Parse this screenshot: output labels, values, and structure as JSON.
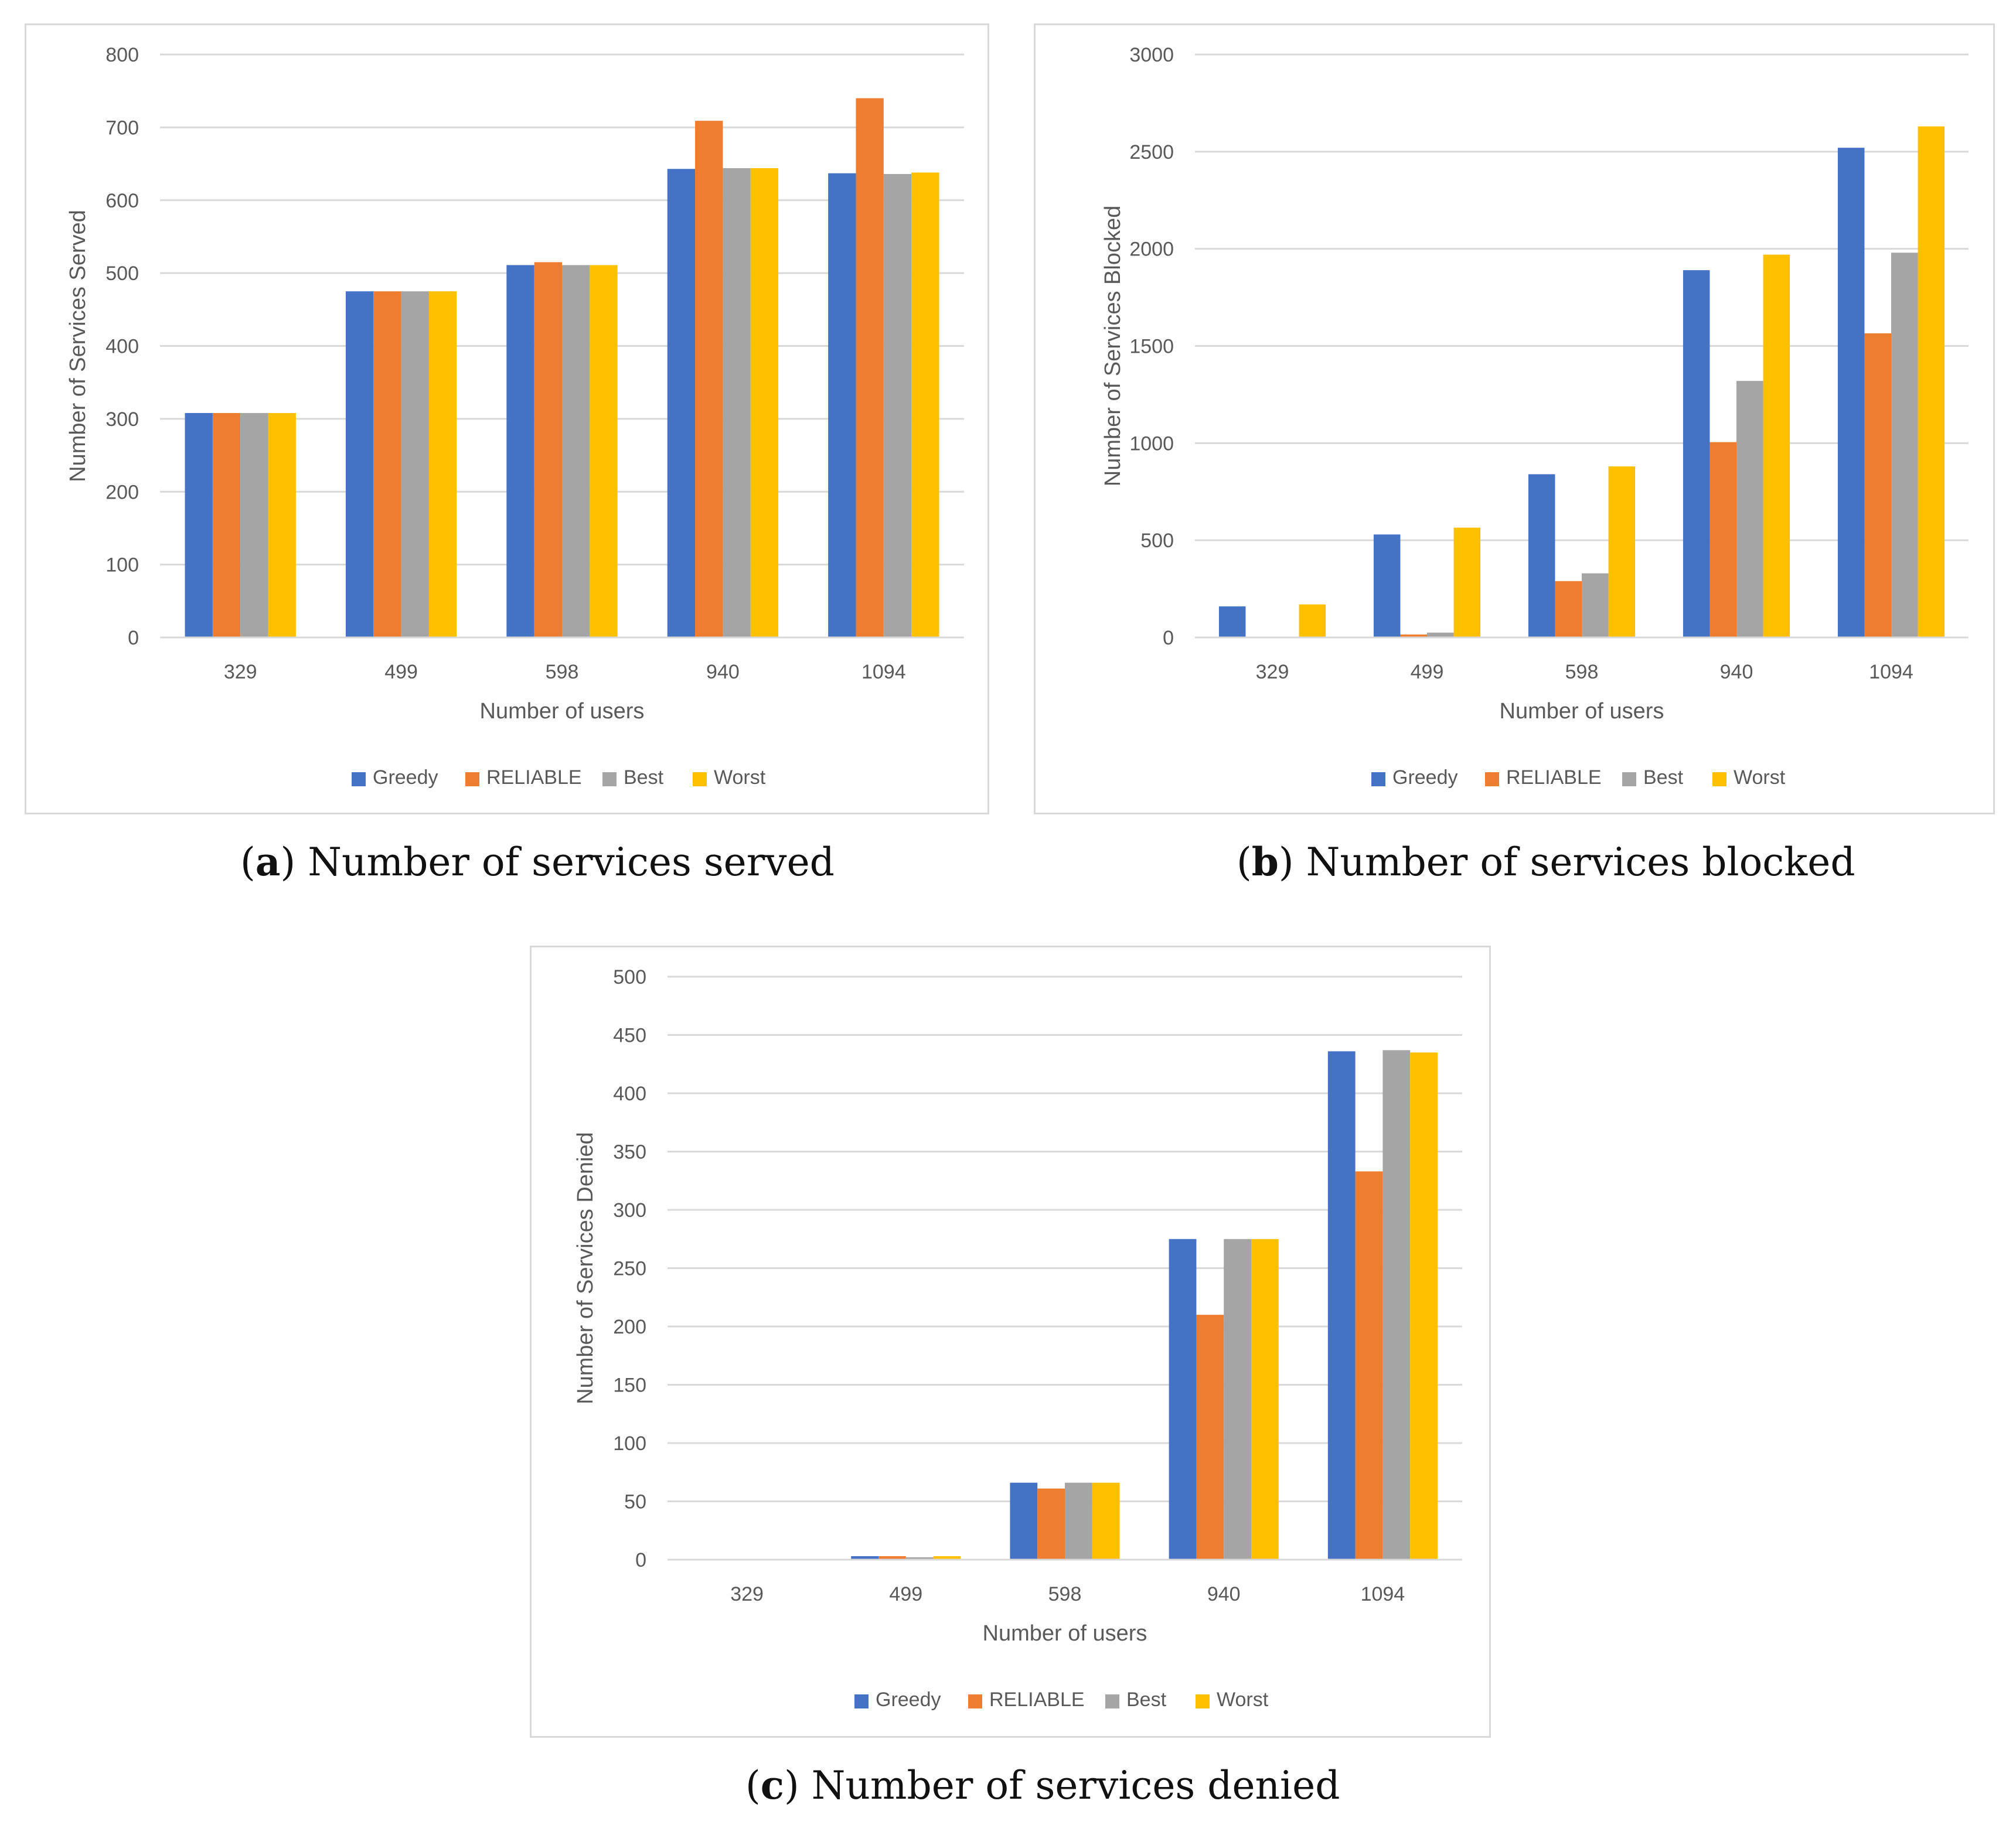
{
  "chart_data": [
    {
      "id": "a",
      "type": "bar",
      "categories": [
        "329",
        "499",
        "598",
        "940",
        "1094"
      ],
      "series": [
        {
          "name": "Greedy",
          "values": [
            308,
            475,
            511,
            643,
            637
          ]
        },
        {
          "name": "RELIABLE",
          "values": [
            308,
            475,
            515,
            709,
            740
          ]
        },
        {
          "name": "Best",
          "values": [
            308,
            475,
            511,
            644,
            636
          ]
        },
        {
          "name": "Worst",
          "values": [
            308,
            475,
            511,
            644,
            638
          ]
        }
      ],
      "ylim": [
        0,
        800
      ],
      "ystep": 100,
      "yticks": [
        "0",
        "100",
        "200",
        "300",
        "400",
        "500",
        "600",
        "700",
        "800"
      ],
      "xlabel": "Number of users",
      "ylabel": "Number of Services Served",
      "legend": "bottom",
      "grid": true,
      "caption_label": "a",
      "caption_text": "Number of services served"
    },
    {
      "id": "b",
      "type": "bar",
      "categories": [
        "329",
        "499",
        "598",
        "940",
        "1094"
      ],
      "series": [
        {
          "name": "Greedy",
          "values": [
            160,
            530,
            840,
            1890,
            2520
          ]
        },
        {
          "name": "RELIABLE",
          "values": [
            0,
            15,
            290,
            1005,
            1565
          ]
        },
        {
          "name": "Best",
          "values": [
            0,
            25,
            330,
            1320,
            1980
          ]
        },
        {
          "name": "Worst",
          "values": [
            170,
            565,
            880,
            1970,
            2630
          ]
        }
      ],
      "ylim": [
        0,
        3000
      ],
      "ystep": 500,
      "yticks": [
        "0",
        "500",
        "1000",
        "1500",
        "2000",
        "2500",
        "3000"
      ],
      "xlabel": "Number of users",
      "ylabel": "Number of Services Blocked",
      "legend": "bottom",
      "grid": true,
      "caption_label": "b",
      "caption_text": "Number of services blocked"
    },
    {
      "id": "c",
      "type": "bar",
      "categories": [
        "329",
        "499",
        "598",
        "940",
        "1094"
      ],
      "series": [
        {
          "name": "Greedy",
          "values": [
            0,
            3,
            66,
            275,
            436
          ]
        },
        {
          "name": "RELIABLE",
          "values": [
            0,
            3,
            61,
            210,
            333
          ]
        },
        {
          "name": "Best",
          "values": [
            0,
            2,
            66,
            275,
            437
          ]
        },
        {
          "name": "Worst",
          "values": [
            0,
            3,
            66,
            275,
            435
          ]
        }
      ],
      "ylim": [
        0,
        500
      ],
      "ystep": 50,
      "yticks": [
        "0",
        "50",
        "100",
        "150",
        "200",
        "250",
        "300",
        "350",
        "400",
        "450",
        "500"
      ],
      "xlabel": "Number of users",
      "ylabel": "Number of Services Denied",
      "legend": "bottom",
      "grid": true,
      "caption_label": "c",
      "caption_text": "Number of services denied"
    }
  ],
  "colors": {
    "Greedy": "#4472c4",
    "RELIABLE": "#ed7d31",
    "Best": "#a5a5a5",
    "Worst": "#ffc000",
    "grid": "#d9d9d9",
    "text": "#595959"
  }
}
